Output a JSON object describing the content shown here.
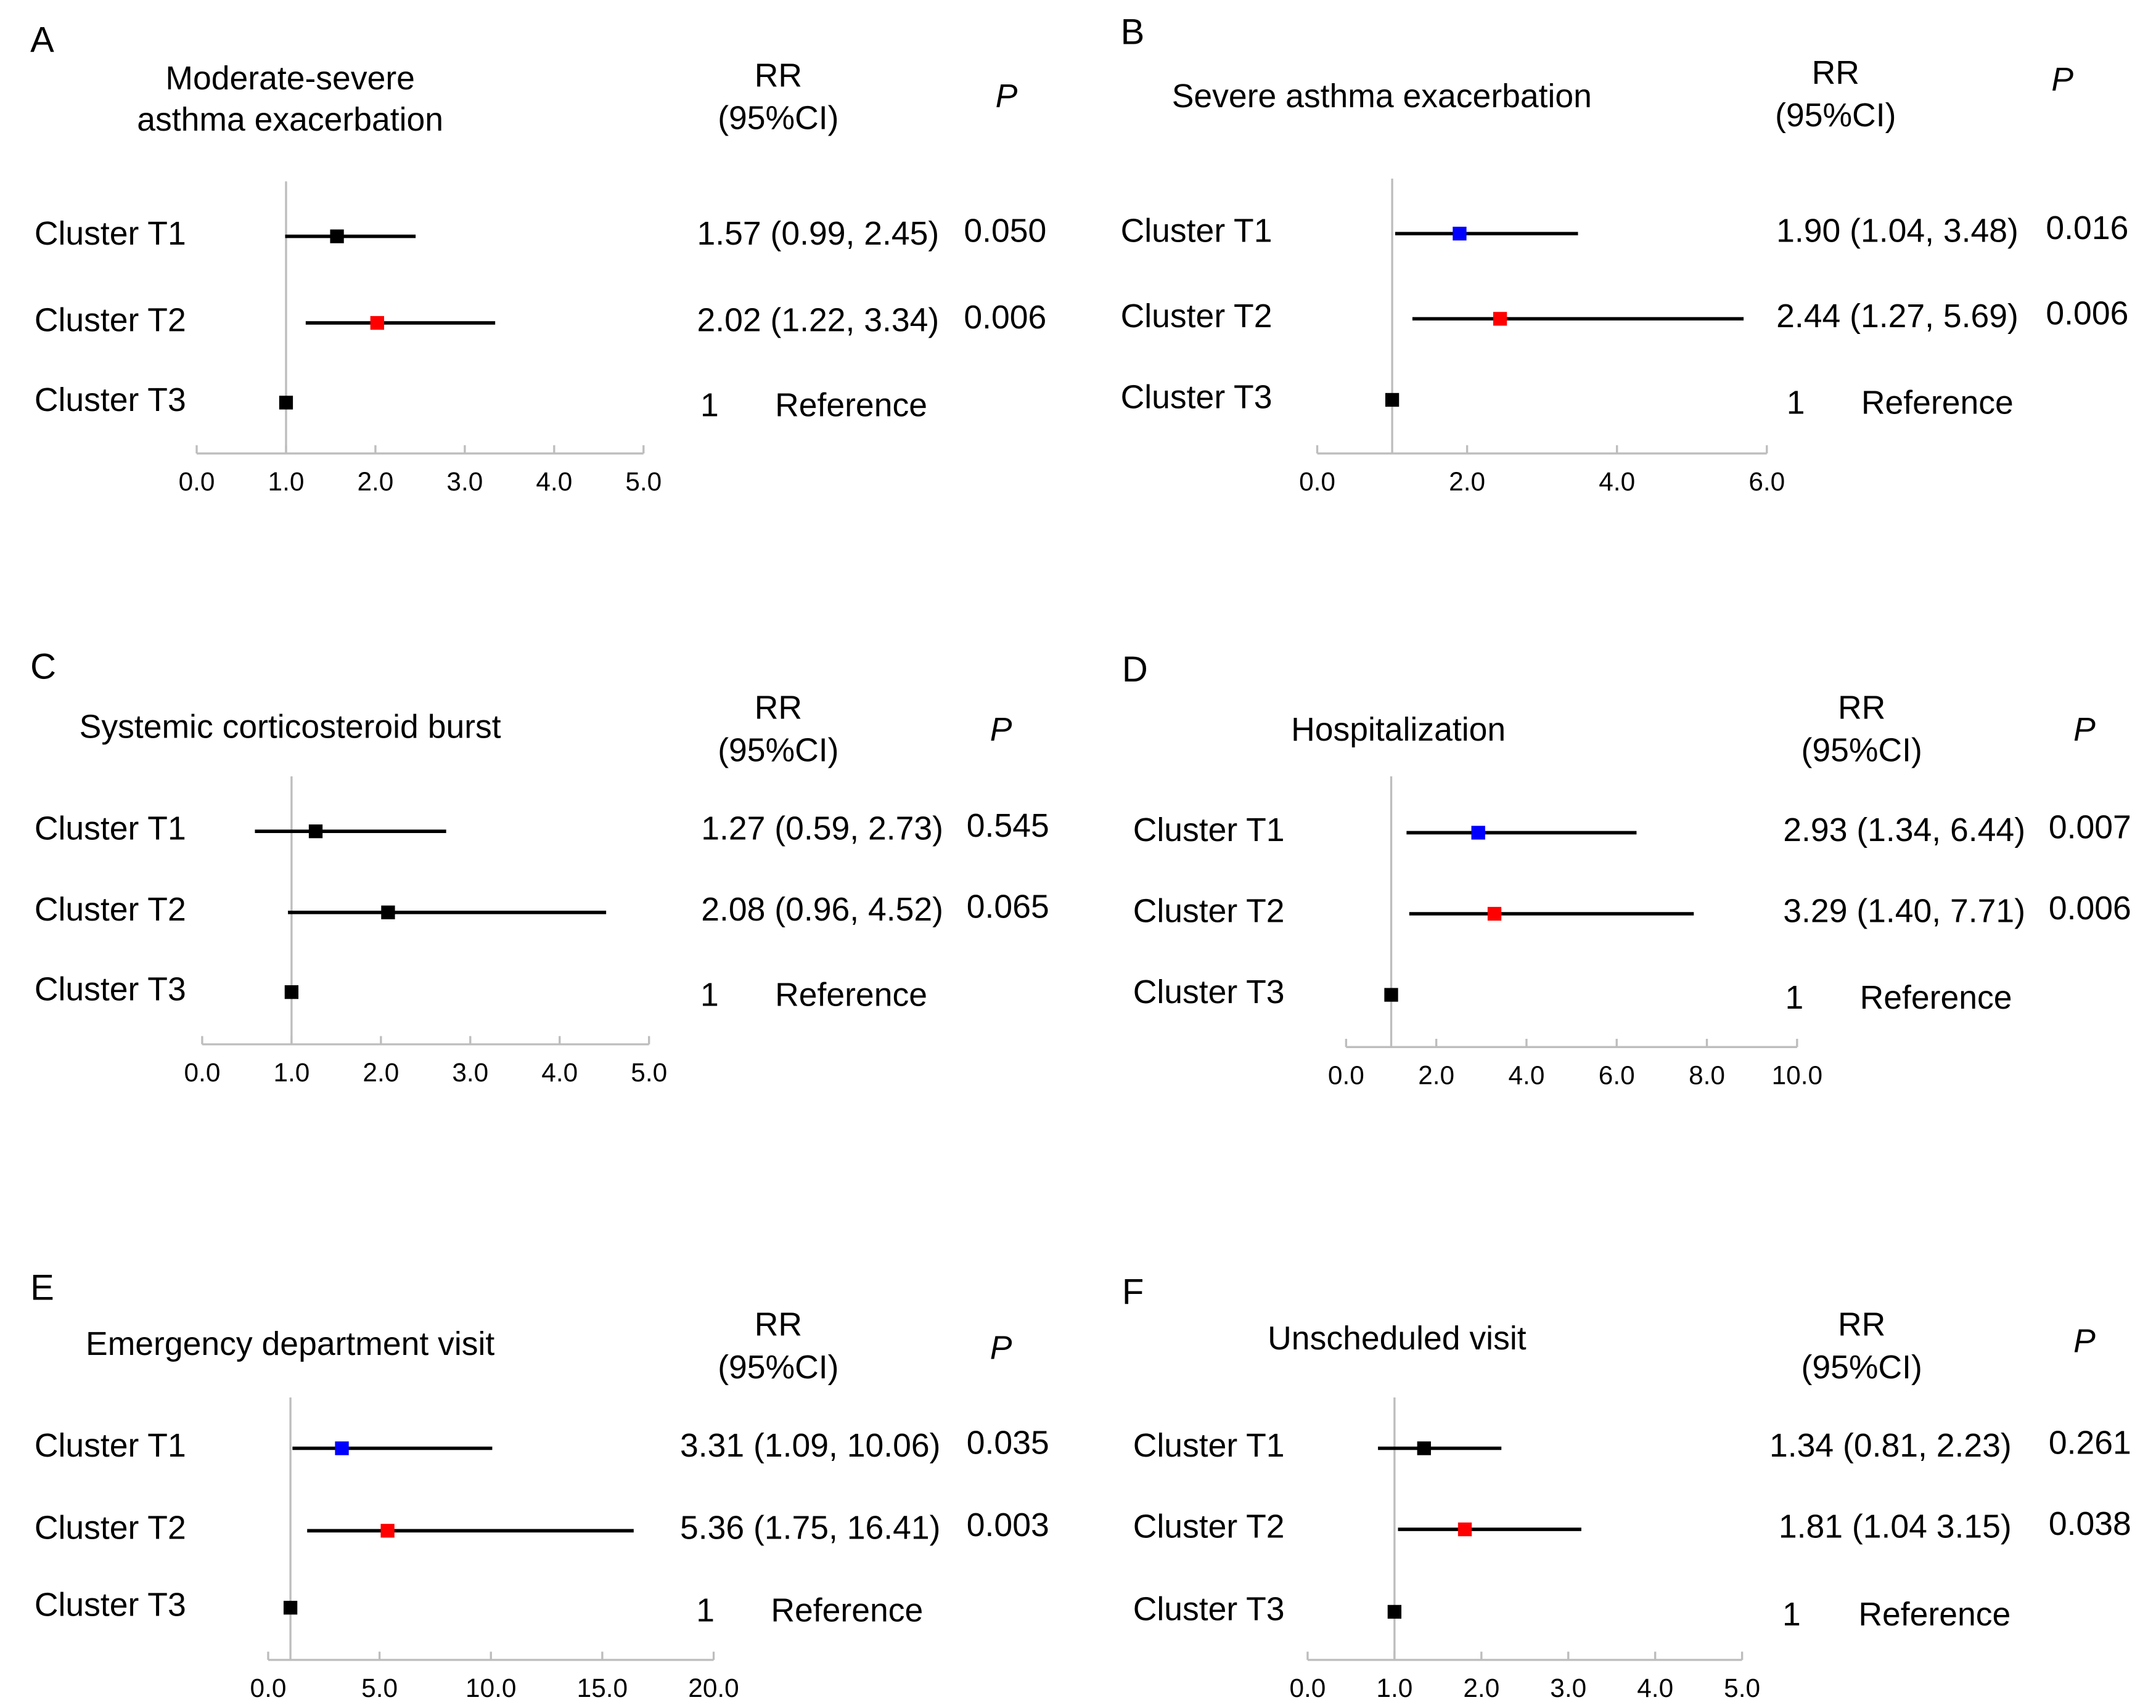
{
  "chart_data": [
    {
      "type": "forest",
      "panel": "A",
      "title_lines": [
        "Moderate-severe",
        "asthma exacerbation"
      ],
      "rr_header": [
        "RR",
        "(95%CI)"
      ],
      "p_header": "P",
      "xlim": [
        0,
        5
      ],
      "xticks": [
        "0.0",
        "1.0",
        "2.0",
        "3.0",
        "4.0",
        "5.0"
      ],
      "xtick_values": [
        0,
        1,
        2,
        3,
        4,
        5
      ],
      "reference_line": 1,
      "rows": [
        {
          "label": "Cluster T1",
          "rr": 1.57,
          "lo": 0.99,
          "hi": 2.45,
          "rr_text": "1.57 (0.99, 2.45)",
          "p": "0.050",
          "color": "#000000"
        },
        {
          "label": "Cluster T2",
          "rr": 2.02,
          "lo": 1.22,
          "hi": 3.34,
          "rr_text": "2.02 (1.22, 3.34)",
          "p": "0.006",
          "color": "#ff0000"
        },
        {
          "label": "Cluster T3",
          "rr": 1,
          "lo": null,
          "hi": null,
          "rr_text": "1",
          "p": "Reference",
          "color": "#000000"
        }
      ]
    },
    {
      "type": "forest",
      "panel": "B",
      "title_lines": [
        "Severe asthma exacerbation"
      ],
      "rr_header": [
        "RR",
        "(95%CI)"
      ],
      "p_header": "P",
      "xlim": [
        0,
        6
      ],
      "xticks": [
        "0.0",
        "2.0",
        "4.0",
        "6.0"
      ],
      "xtick_values": [
        0,
        2,
        4,
        6
      ],
      "reference_line": 1,
      "rows": [
        {
          "label": "Cluster T1",
          "rr": 1.9,
          "lo": 1.04,
          "hi": 3.48,
          "rr_text": "1.90 (1.04, 3.48)",
          "p": "0.016",
          "color": "#0000ff"
        },
        {
          "label": "Cluster T2",
          "rr": 2.44,
          "lo": 1.27,
          "hi": 5.69,
          "rr_text": "2.44 (1.27, 5.69)",
          "p": "0.006",
          "color": "#ff0000"
        },
        {
          "label": "Cluster T3",
          "rr": 1,
          "lo": null,
          "hi": null,
          "rr_text": "1",
          "p": "Reference",
          "color": "#000000"
        }
      ]
    },
    {
      "type": "forest",
      "panel": "C",
      "title_lines": [
        "Systemic corticosteroid burst"
      ],
      "rr_header": [
        "RR",
        "(95%CI)"
      ],
      "p_header": "P",
      "xlim": [
        0,
        5
      ],
      "xticks": [
        "0.0",
        "1.0",
        "2.0",
        "3.0",
        "4.0",
        "5.0"
      ],
      "xtick_values": [
        0,
        1,
        2,
        3,
        4,
        5
      ],
      "reference_line": 1,
      "rows": [
        {
          "label": "Cluster T1",
          "rr": 1.27,
          "lo": 0.59,
          "hi": 2.73,
          "rr_text": "1.27 (0.59, 2.73)",
          "p": "0.545",
          "color": "#000000"
        },
        {
          "label": "Cluster T2",
          "rr": 2.08,
          "lo": 0.96,
          "hi": 4.52,
          "rr_text": "2.08 (0.96, 4.52)",
          "p": "0.065",
          "color": "#000000"
        },
        {
          "label": "Cluster T3",
          "rr": 1,
          "lo": null,
          "hi": null,
          "rr_text": "1",
          "p": "Reference",
          "color": "#000000"
        }
      ]
    },
    {
      "type": "forest",
      "panel": "D",
      "title_lines": [
        "Hospitalization"
      ],
      "rr_header": [
        "RR",
        "(95%CI)"
      ],
      "p_header": "P",
      "xlim": [
        0,
        10
      ],
      "xticks": [
        "0.0",
        "2.0",
        "4.0",
        "6.0",
        "8.0",
        "10.0"
      ],
      "xtick_values": [
        0,
        2,
        4,
        6,
        8,
        10
      ],
      "reference_line": 1,
      "rows": [
        {
          "label": "Cluster T1",
          "rr": 2.93,
          "lo": 1.34,
          "hi": 6.44,
          "rr_text": "2.93 (1.34, 6.44)",
          "p": "0.007",
          "color": "#0000ff"
        },
        {
          "label": "Cluster T2",
          "rr": 3.29,
          "lo": 1.4,
          "hi": 7.71,
          "rr_text": "3.29 (1.40, 7.71)",
          "p": "0.006",
          "color": "#ff0000"
        },
        {
          "label": "Cluster T3",
          "rr": 1,
          "lo": null,
          "hi": null,
          "rr_text": "1",
          "p": "Reference",
          "color": "#000000"
        }
      ]
    },
    {
      "type": "forest",
      "panel": "E",
      "title_lines": [
        "Emergency department visit"
      ],
      "rr_header": [
        "RR",
        "(95%CI)"
      ],
      "p_header": "P",
      "xlim": [
        0,
        20
      ],
      "xticks": [
        "0.0",
        "5.0",
        "10.0",
        "15.0",
        "20.0"
      ],
      "xtick_values": [
        0,
        5,
        10,
        15,
        20
      ],
      "reference_line": 1,
      "rows": [
        {
          "label": "Cluster T1",
          "rr": 3.31,
          "lo": 1.09,
          "hi": 10.06,
          "rr_text": "3.31 (1.09, 10.06)",
          "p": "0.035",
          "color": "#0000ff"
        },
        {
          "label": "Cluster T2",
          "rr": 5.36,
          "lo": 1.75,
          "hi": 16.41,
          "rr_text": "5.36 (1.75, 16.41)",
          "p": "0.003",
          "color": "#ff0000"
        },
        {
          "label": "Cluster T3",
          "rr": 1,
          "lo": null,
          "hi": null,
          "rr_text": "1",
          "p": "Reference",
          "color": "#000000"
        }
      ]
    },
    {
      "type": "forest",
      "panel": "F",
      "title_lines": [
        "Unscheduled visit"
      ],
      "rr_header": [
        "RR",
        "(95%CI)"
      ],
      "p_header": "P",
      "xlim": [
        0,
        5
      ],
      "xticks": [
        "0.0",
        "1.0",
        "2.0",
        "3.0",
        "4.0",
        "5.0"
      ],
      "xtick_values": [
        0,
        1,
        2,
        3,
        4,
        5
      ],
      "reference_line": 1,
      "rows": [
        {
          "label": "Cluster T1",
          "rr": 1.34,
          "lo": 0.81,
          "hi": 2.23,
          "rr_text": "1.34 (0.81, 2.23)",
          "p": "0.261",
          "color": "#000000"
        },
        {
          "label": "Cluster T2",
          "rr": 1.81,
          "lo": 1.04,
          "hi": 3.15,
          "rr_text": "1.81 (1.04 3.15)",
          "p": "0.038",
          "color": "#ff0000"
        },
        {
          "label": "Cluster T3",
          "rr": 1,
          "lo": null,
          "hi": null,
          "rr_text": "1",
          "p": "Reference",
          "color": "#000000"
        }
      ]
    }
  ]
}
